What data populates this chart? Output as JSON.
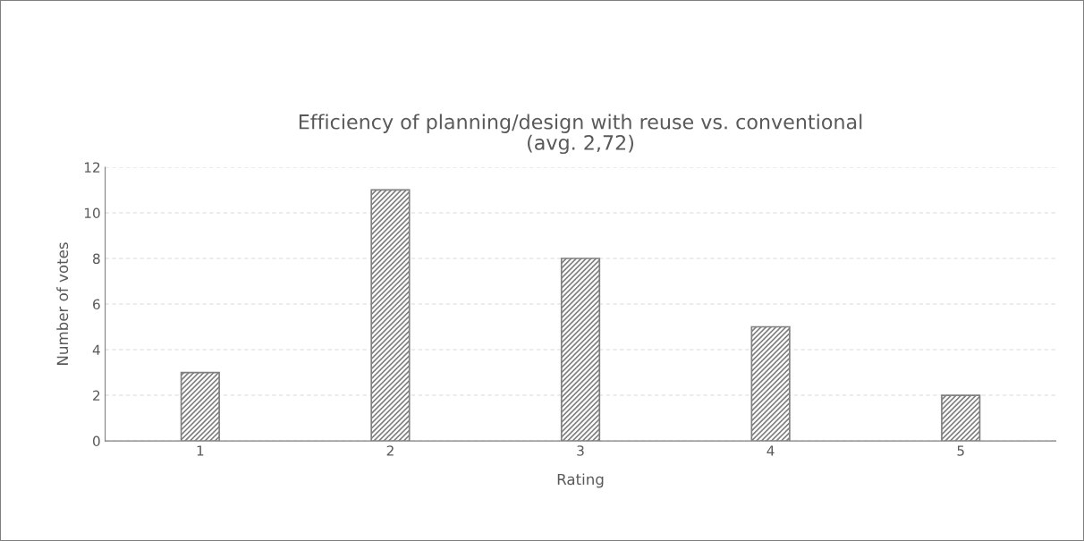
{
  "chart_data": {
    "type": "bar",
    "title": "Efficiency of planning/design with reuse vs. conventional\n(avg. 2,72)",
    "xlabel": "Rating",
    "ylabel": "Number of votes",
    "categories": [
      "1",
      "2",
      "3",
      "4",
      "5"
    ],
    "values": [
      3,
      11,
      8,
      5,
      2
    ],
    "color": "#7f7f7f",
    "ylim": [
      0,
      12
    ],
    "yticks": [
      0,
      2,
      4,
      6,
      8,
      10,
      12
    ],
    "grid": "y",
    "legend": false
  }
}
